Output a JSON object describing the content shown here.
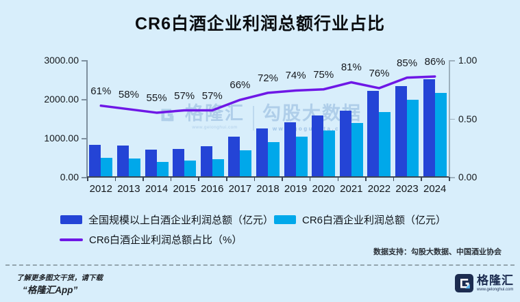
{
  "title": "CR6白酒企业利润总额行业占比",
  "chart_data": {
    "type": "combo-bar-line",
    "categories": [
      "2012",
      "2013",
      "2014",
      "2015",
      "2016",
      "2017",
      "2018",
      "2019",
      "2020",
      "2021",
      "2022",
      "2023",
      "2024"
    ],
    "series": [
      {
        "name": "全国规模以上白酒企业利润总额（亿元）",
        "type": "bar",
        "color": "#2444d6",
        "values": [
          819,
          805,
          699,
          727,
          797,
          1028,
          1251,
          1404,
          1585,
          1702,
          2202,
          2328,
          2509
        ]
      },
      {
        "name": "CR6白酒企业利润总额（亿元）",
        "type": "bar",
        "color": "#00a8ea",
        "values": [
          500,
          467,
          384,
          414,
          454,
          679,
          901,
          1039,
          1189,
          1379,
          1673,
          1979,
          2158
        ]
      },
      {
        "name": "CR6白酒企业利润总额占比（%）",
        "type": "line",
        "axis": "right",
        "color": "#6e17e6",
        "values": [
          0.61,
          0.58,
          0.55,
          0.57,
          0.57,
          0.66,
          0.72,
          0.74,
          0.75,
          0.81,
          0.76,
          0.85,
          0.86
        ],
        "point_labels": [
          "61%",
          "58%",
          "55%",
          "57%",
          "57%",
          "66%",
          "72%",
          "74%",
          "75%",
          "81%",
          "76%",
          "85%",
          "86%"
        ]
      }
    ],
    "left_axis": {
      "ticks": [
        "3000.00",
        "2000.00",
        "1000.00",
        "0.00"
      ],
      "min": 0,
      "max": 3000
    },
    "right_axis": {
      "ticks": [
        "1.00",
        "0.50",
        "0.00"
      ],
      "min": 0,
      "max": 1
    },
    "legend_position": "bottom",
    "grid": false
  },
  "source_note": "数据支持：勾股大数据、中国酒业协会",
  "watermark": {
    "brand": "格隆汇",
    "brand_url": "www.gelonghui.com",
    "partner": "勾股大数据",
    "partner_url": "www.gogudata.com"
  },
  "footer": {
    "promo_line1": "了解更多图文干货，请下载",
    "promo_line2": "“格隆汇App”",
    "logo_text": "格隆汇",
    "logo_url": "www.gelonghui.com"
  }
}
